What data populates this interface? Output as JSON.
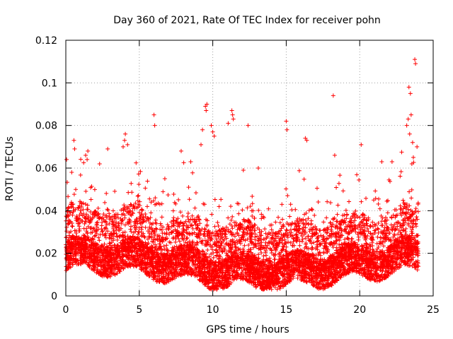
{
  "chart_data": {
    "type": "scatter",
    "title": "Day 360 of 2021, Rate Of TEC Index for receiver pohn",
    "xlabel": "GPS time / hours",
    "ylabel": "ROTI / TECUs",
    "xlim": [
      0,
      25
    ],
    "ylim": [
      0,
      0.12
    ],
    "xticks": [
      0,
      5,
      10,
      15,
      20,
      25
    ],
    "xtick_labels": [
      "0",
      "5",
      "10",
      "15",
      "20",
      "25"
    ],
    "yticks": [
      0,
      0.02,
      0.04,
      0.06,
      0.08,
      0.1,
      0.12
    ],
    "ytick_labels": [
      "0",
      "0.02",
      "0.04",
      "0.06",
      "0.08",
      "0.1",
      "0.12"
    ],
    "grid": true,
    "marker": "+",
    "marker_color": "#ff0000",
    "series": [
      {
        "name": "ROTI",
        "note": "dense band of samples every ~30 s from 0 to 24 h, mostly 0.005-0.04 TECU",
        "x_range": [
          0,
          24
        ],
        "bulk_range": [
          0.005,
          0.04
        ],
        "outliers": [
          {
            "x": 0.05,
            "y": 0.064
          },
          {
            "x": 0.4,
            "y": 0.058
          },
          {
            "x": 0.55,
            "y": 0.073
          },
          {
            "x": 0.6,
            "y": 0.069
          },
          {
            "x": 1.35,
            "y": 0.066
          },
          {
            "x": 1.5,
            "y": 0.068
          },
          {
            "x": 1.45,
            "y": 0.064
          },
          {
            "x": 2.3,
            "y": 0.062
          },
          {
            "x": 2.85,
            "y": 0.069
          },
          {
            "x": 3.9,
            "y": 0.07
          },
          {
            "x": 4.0,
            "y": 0.073
          },
          {
            "x": 4.05,
            "y": 0.076
          },
          {
            "x": 4.2,
            "y": 0.071
          },
          {
            "x": 6.0,
            "y": 0.085
          },
          {
            "x": 6.05,
            "y": 0.08
          },
          {
            "x": 7.85,
            "y": 0.068
          },
          {
            "x": 8.5,
            "y": 0.063
          },
          {
            "x": 9.2,
            "y": 0.071
          },
          {
            "x": 9.3,
            "y": 0.078
          },
          {
            "x": 9.5,
            "y": 0.089
          },
          {
            "x": 9.6,
            "y": 0.09
          },
          {
            "x": 9.55,
            "y": 0.087
          },
          {
            "x": 9.9,
            "y": 0.08
          },
          {
            "x": 10.1,
            "y": 0.075
          },
          {
            "x": 10.0,
            "y": 0.077
          },
          {
            "x": 11.05,
            "y": 0.081
          },
          {
            "x": 11.3,
            "y": 0.087
          },
          {
            "x": 11.35,
            "y": 0.085
          },
          {
            "x": 11.4,
            "y": 0.083
          },
          {
            "x": 12.4,
            "y": 0.08
          },
          {
            "x": 13.1,
            "y": 0.06
          },
          {
            "x": 15.0,
            "y": 0.082
          },
          {
            "x": 15.05,
            "y": 0.078
          },
          {
            "x": 16.3,
            "y": 0.074
          },
          {
            "x": 16.4,
            "y": 0.073
          },
          {
            "x": 18.2,
            "y": 0.094
          },
          {
            "x": 18.3,
            "y": 0.066
          },
          {
            "x": 20.1,
            "y": 0.071
          },
          {
            "x": 21.5,
            "y": 0.063
          },
          {
            "x": 22.2,
            "y": 0.063
          },
          {
            "x": 23.2,
            "y": 0.08
          },
          {
            "x": 23.3,
            "y": 0.083
          },
          {
            "x": 23.35,
            "y": 0.098
          },
          {
            "x": 23.45,
            "y": 0.095
          },
          {
            "x": 23.5,
            "y": 0.085
          },
          {
            "x": 23.4,
            "y": 0.076
          },
          {
            "x": 23.6,
            "y": 0.072
          },
          {
            "x": 23.65,
            "y": 0.065
          },
          {
            "x": 23.75,
            "y": 0.111
          },
          {
            "x": 23.8,
            "y": 0.109
          },
          {
            "x": 23.9,
            "y": 0.07
          },
          {
            "x": 23.55,
            "y": 0.062
          }
        ]
      }
    ]
  }
}
